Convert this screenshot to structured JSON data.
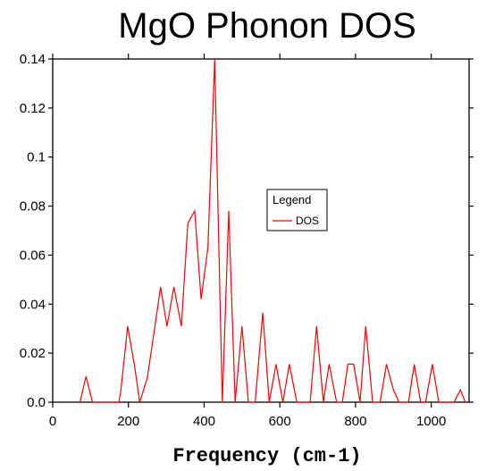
{
  "chart_data": {
    "type": "line",
    "title": "MgO Phonon DOS",
    "xlabel": "Frequency (cm-1)",
    "ylabel": "",
    "xlim": [
      0,
      1100
    ],
    "ylim": [
      0,
      0.14
    ],
    "x_ticks": [
      0,
      200,
      400,
      600,
      800,
      1000
    ],
    "y_ticks": [
      0.0,
      0.02,
      0.04,
      0.06,
      0.08,
      0.1,
      0.12,
      0.14
    ],
    "x_tick_labels": [
      "0",
      "200",
      "400",
      "600",
      "800",
      "1000"
    ],
    "y_tick_labels": [
      "0.0",
      "0.02",
      "0.04",
      "0.06",
      "0.08",
      "0.1",
      "0.12",
      "0.14"
    ],
    "grid": false,
    "legend": {
      "title": "Legend",
      "position": "center-right"
    },
    "series": [
      {
        "name": "DOS",
        "color": "#ff0000",
        "points": [
          [
            72,
            0.0
          ],
          [
            88,
            0.0105
          ],
          [
            105,
            0.0
          ],
          [
            175,
            0.0
          ],
          [
            180,
            0.005
          ],
          [
            198,
            0.031
          ],
          [
            216,
            0.015
          ],
          [
            230,
            0.0
          ],
          [
            250,
            0.01
          ],
          [
            270,
            0.031
          ],
          [
            285,
            0.047
          ],
          [
            302,
            0.031
          ],
          [
            320,
            0.047
          ],
          [
            340,
            0.031
          ],
          [
            357,
            0.073
          ],
          [
            375,
            0.078
          ],
          [
            392,
            0.042
          ],
          [
            410,
            0.063
          ],
          [
            428,
            0.14
          ],
          [
            448,
            0.0
          ],
          [
            465,
            0.078
          ],
          [
            482,
            0.0
          ],
          [
            500,
            0.031
          ],
          [
            517,
            0.0
          ],
          [
            535,
            0.0
          ],
          [
            555,
            0.0365
          ],
          [
            572,
            0.0
          ],
          [
            590,
            0.0155
          ],
          [
            608,
            0.0
          ],
          [
            625,
            0.0155
          ],
          [
            645,
            0.0
          ],
          [
            680,
            0.0
          ],
          [
            697,
            0.031
          ],
          [
            715,
            0.0
          ],
          [
            730,
            0.0155
          ],
          [
            750,
            0.0
          ],
          [
            765,
            0.0
          ],
          [
            780,
            0.0155
          ],
          [
            795,
            0.0155
          ],
          [
            812,
            0.0
          ],
          [
            827,
            0.031
          ],
          [
            845,
            0.0
          ],
          [
            865,
            0.0
          ],
          [
            882,
            0.0155
          ],
          [
            900,
            0.005
          ],
          [
            915,
            0.0
          ],
          [
            940,
            0.0
          ],
          [
            955,
            0.0155
          ],
          [
            972,
            0.0
          ],
          [
            985,
            0.0
          ],
          [
            1003,
            0.0155
          ],
          [
            1020,
            0.0
          ],
          [
            1060,
            0.0
          ],
          [
            1077,
            0.005
          ],
          [
            1090,
            0.0
          ]
        ]
      }
    ]
  }
}
